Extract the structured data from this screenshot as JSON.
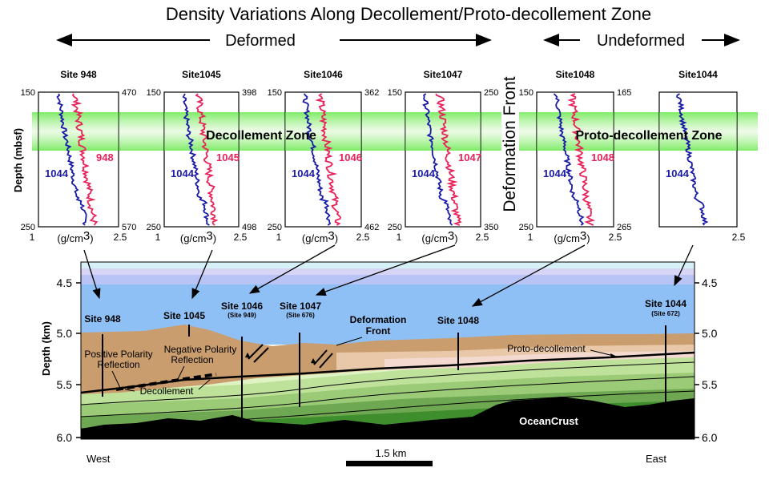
{
  "title": "Density Variations Along Decollement/Proto-decollement Zone",
  "labels": {
    "deformed": "Deformed",
    "undeformed": "Undeformed",
    "deformation_front_vertical": "Deformation Front",
    "depth_mbsf": "Depth (mbsf)",
    "depth_km": "Depth (km)",
    "decollement_zone": "Decollement Zone",
    "proto_decollement_zone": "Proto-decollement Zone",
    "west": "West",
    "east": "East",
    "scale": "1.5 km",
    "ocean_crust": "OceanCrust",
    "positive_polarity": "Positive Polarity",
    "reflection_a": "Reflection",
    "negative_polarity": "Negative Polarity",
    "reflection_b": "Reflection",
    "decollement": "Decollement",
    "proto_decollement": "Proto-decollement",
    "deformation": "Deformation",
    "front": "Front"
  },
  "panels": [
    {
      "site": "Site 948",
      "top_left": "150",
      "bottom_left": "250",
      "top_right": "470",
      "bottom_right": "570",
      "x_min": "1",
      "x_unit": "(g/cm",
      "x_sup": "3",
      "x_sup_close": ")",
      "x_max": "2.5",
      "ref_label": "1044",
      "site_label": "948"
    },
    {
      "site": "Site1045",
      "top_left": "150",
      "bottom_left": "250",
      "top_right": "398",
      "bottom_right": "498",
      "x_min": "1",
      "x_unit": "(g/cm",
      "x_sup": "3",
      "x_sup_close": ")",
      "x_max": "2.5",
      "ref_label": "1044",
      "site_label": "1045"
    },
    {
      "site": "Site1046",
      "top_left": "150",
      "bottom_left": "250",
      "top_right": "362",
      "bottom_right": "462",
      "x_min": "1",
      "x_unit": "(g/cm",
      "x_sup": "3",
      "x_sup_close": ")",
      "x_max": "2.5",
      "ref_label": "1044",
      "site_label": "1046"
    },
    {
      "site": "Site1047",
      "top_left": "150",
      "bottom_left": "250",
      "top_right": "250",
      "bottom_right": "350",
      "x_min": "1",
      "x_unit": "(g/cm",
      "x_sup": "3",
      "x_sup_close": ")",
      "x_max": "2.5",
      "ref_label": "1044",
      "site_label": "1047"
    },
    {
      "site": "Site1048",
      "top_left": "150",
      "bottom_left": "250",
      "top_right": "165",
      "bottom_right": "265",
      "x_min": "1",
      "x_unit": "(g/cm",
      "x_sup": "3",
      "x_sup_close": ")",
      "x_max": "2.5",
      "ref_label": "1044",
      "site_label": "1048"
    },
    {
      "site": "Site1044",
      "top_left": "",
      "bottom_left": "",
      "top_right": "",
      "bottom_right": "",
      "x_min": "",
      "x_unit": "",
      "x_sup": "",
      "x_sup_close": "",
      "x_max": "2.5",
      "ref_label": "1044",
      "site_label": ""
    }
  ],
  "section_sites": [
    {
      "name": "Site 948",
      "sub": ""
    },
    {
      "name": "Site 1045",
      "sub": ""
    },
    {
      "name": "Site 1046",
      "sub": "(Site 949)"
    },
    {
      "name": "Site 1047",
      "sub": "(Site 676)"
    },
    {
      "name": "Site 1048",
      "sub": ""
    },
    {
      "name": "Site 1044",
      "sub": "(Site 672)"
    }
  ],
  "depth_ticks_km": [
    "4.5",
    "5.0",
    "5.5",
    "6.0"
  ],
  "colors": {
    "reference_curve": "#1a1aa8",
    "site_curve": "#e8235a",
    "zone_band": "#66e84a",
    "water_top": "#cfe8f7",
    "water": "#8fc0f5",
    "sediment_brown": "#c79a6a",
    "crust": "#000000"
  }
}
